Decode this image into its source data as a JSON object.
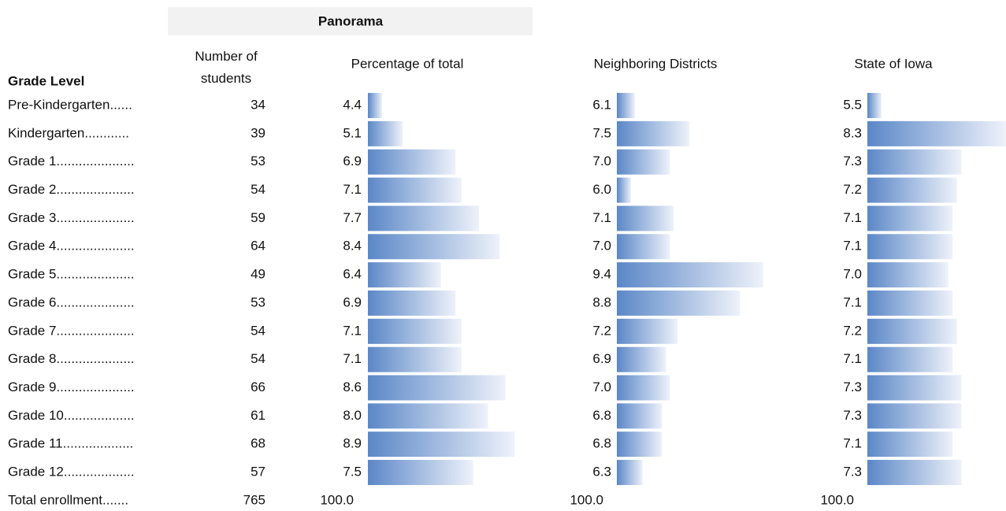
{
  "header": {
    "group": "Panorama",
    "row_label": "Grade Level",
    "columns": [
      "Number of students",
      "Percentage of total",
      "Neighboring Districts",
      "State of Iowa"
    ]
  },
  "table": {
    "rows": [
      [
        "Pre-Kindergarten......",
        "34",
        "4.4",
        "6.1",
        "5.5"
      ],
      [
        "Kindergarten............",
        "39",
        "5.1",
        "7.5",
        "8.3"
      ],
      [
        "Grade 1.....................",
        "53",
        "6.9",
        "7.0",
        "7.3"
      ],
      [
        "Grade 2.....................",
        "54",
        "7.1",
        "6.0",
        "7.2"
      ],
      [
        "Grade 3.....................",
        "59",
        "7.7",
        "7.1",
        "7.1"
      ],
      [
        "Grade 4.....................",
        "64",
        "8.4",
        "7.0",
        "7.1"
      ],
      [
        "Grade 5.....................",
        "49",
        "6.4",
        "9.4",
        "7.0"
      ],
      [
        "Grade 6.....................",
        "53",
        "6.9",
        "8.8",
        "7.1"
      ],
      [
        "Grade 7.....................",
        "54",
        "7.1",
        "7.2",
        "7.2"
      ],
      [
        "Grade 8.....................",
        "54",
        "7.1",
        "6.9",
        "7.1"
      ],
      [
        "Grade 9.....................",
        "66",
        "8.6",
        "7.0",
        "7.3"
      ],
      [
        "Grade 10...................",
        "61",
        "8.0",
        "6.8",
        "7.3"
      ],
      [
        "Grade 11...................",
        "68",
        "8.9",
        "6.8",
        "7.1"
      ],
      [
        "Grade 12...................",
        "57",
        "7.5",
        "6.3",
        "7.3"
      ]
    ],
    "total": [
      "Total enrollment.......",
      "765",
      "100.0",
      "100.0",
      "100.0"
    ]
  }
}
